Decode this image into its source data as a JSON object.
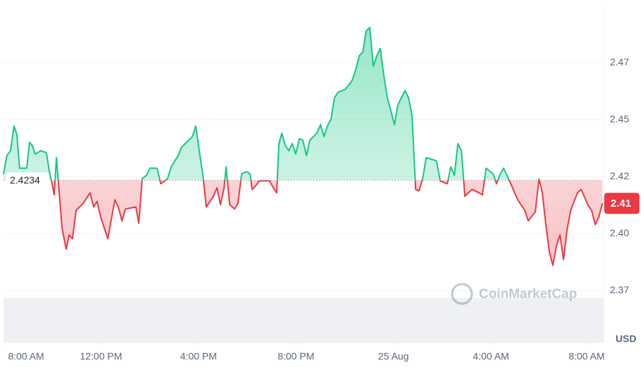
{
  "chart_data": {
    "type": "line",
    "x": [
      0,
      0.14,
      0.29,
      0.43,
      0.55,
      0.66,
      0.95,
      1.07,
      1.18,
      1.3,
      1.53,
      1.76,
      1.88,
      1.99,
      2.08,
      2.17,
      2.4,
      2.57,
      2.69,
      2.83,
      2.98,
      3.27,
      3.55,
      3.7,
      3.84,
      3.99,
      4.28,
      4.57,
      4.71,
      4.86,
      5.0,
      5.43,
      5.55,
      5.69,
      5.87,
      6.01,
      6.3,
      6.45,
      6.73,
      6.88,
      7.17,
      7.31,
      7.6,
      7.75,
      7.89,
      8.03,
      8.18,
      8.32,
      8.61,
      8.76,
      8.9,
      9.05,
      9.13,
      9.28,
      9.48,
      9.62,
      9.77,
      9.97,
      10.12,
      10.2,
      10.35,
      10.49,
      10.92,
      11.07,
      11.21,
      11.3,
      11.42,
      11.56,
      11.71,
      11.85,
      11.99,
      12.14,
      12.28,
      12.43,
      12.57,
      12.86,
      13.01,
      13.15,
      13.29,
      13.44,
      13.58,
      13.73,
      14.02,
      14.31,
      14.45,
      14.6,
      14.74,
      14.88,
      15.03,
      15.17,
      15.32,
      15.46,
      15.61,
      15.75,
      16.04,
      16.18,
      16.47,
      16.62,
      16.76,
      16.91,
      17.05,
      17.2,
      17.34,
      17.63,
      17.77,
      17.92,
      18.21,
      18.35,
      18.5,
      18.64,
      18.79,
      18.93,
      19.22,
      19.51,
      19.65,
      19.8,
      20.09,
      20.23,
      20.38,
      20.52,
      20.81,
      21.1,
      21.39,
      21.53,
      21.82,
      21.97,
      22.11,
      22.25,
      22.4,
      22.54,
      22.69,
      22.83,
      22.98,
      23.12,
      23.27,
      23.55,
      23.7,
      23.99,
      24.13,
      24.28,
      24.42,
      24.57
    ],
    "series": [
      {
        "values": [
          2.4262,
          2.4343,
          2.4364,
          2.4472,
          2.4435,
          2.4287,
          2.4287,
          2.4401,
          2.4386,
          2.4349,
          2.4364,
          2.4355,
          2.4272,
          2.4219,
          2.417,
          2.4333,
          2.4025,
          2.3932,
          2.3994,
          2.3978,
          2.4102,
          2.4133,
          2.4179,
          2.4117,
          2.4142,
          2.4071,
          2.3978,
          2.4148,
          2.4117,
          2.4056,
          2.4108,
          2.4117,
          2.4046,
          2.4241,
          2.4256,
          2.4287,
          2.4287,
          2.4219,
          2.4241,
          2.4293,
          2.4343,
          2.438,
          2.441,
          2.4426,
          2.4472,
          2.4364,
          2.4256,
          2.4117,
          2.4164,
          2.4201,
          2.4127,
          2.4201,
          2.4293,
          2.4127,
          2.4108,
          2.4133,
          2.4262,
          2.4272,
          2.4262,
          2.4194,
          2.421,
          2.4231,
          2.4231,
          2.4201,
          2.4179,
          2.4395,
          2.4441,
          2.4386,
          2.4364,
          2.4395,
          2.4349,
          2.4417,
          2.441,
          2.4343,
          2.441,
          2.4441,
          2.4478,
          2.4426,
          2.4472,
          2.4503,
          2.4596,
          2.462,
          2.4633,
          2.4673,
          2.4719,
          2.4781,
          2.4796,
          2.4889,
          2.4904,
          2.4735,
          2.4781,
          2.4812,
          2.4688,
          2.4596,
          2.4478,
          2.4565,
          2.4627,
          2.4596,
          2.4519,
          2.4194,
          2.4188,
          2.4241,
          2.4333,
          2.4324,
          2.4318,
          2.4231,
          2.4219,
          2.4293,
          2.4256,
          2.4395,
          2.4364,
          2.4164,
          2.4194,
          2.4179,
          2.417,
          2.4287,
          2.4262,
          2.4219,
          2.4262,
          2.4287,
          2.4219,
          2.4148,
          2.4102,
          2.4056,
          2.4096,
          2.4241,
          2.4179,
          2.404,
          2.3917,
          2.3861,
          2.3948,
          2.3994,
          2.3886,
          2.4015,
          2.4102,
          2.4179,
          2.4194,
          2.4123,
          2.4102,
          2.404,
          2.4071,
          2.4133
        ]
      }
    ],
    "up_color": "#16c784",
    "down_color": "#ea3943",
    "baseline": 2.4234,
    "last_price": {
      "value": 2.4133,
      "label": "2.41"
    },
    "xlim": [
      0,
      24.62
    ],
    "xticks": [
      {
        "value": 0,
        "label": "8:00 AM"
      },
      {
        "value": 4,
        "label": "12:00 PM"
      },
      {
        "value": 8,
        "label": "4:00 PM"
      },
      {
        "value": 12,
        "label": "8:00 PM"
      },
      {
        "value": 16,
        "label": "25 Aug"
      },
      {
        "value": 20,
        "label": "4:00 AM"
      },
      {
        "value": 24,
        "label": "8:00 AM"
      }
    ],
    "ylim": [
      2.352,
      2.5
    ],
    "yticks": [
      {
        "value": 2.475,
        "label": "2.47"
      },
      2.45,
      {
        "value": 2.425,
        "label": "2.42"
      },
      {
        "value": 2.4,
        "label": "2.40"
      },
      {
        "value": 2.375,
        "label": "2.37"
      }
    ],
    "y_unit": "USD",
    "watermark": "CoinMarketCap",
    "grid": true
  }
}
